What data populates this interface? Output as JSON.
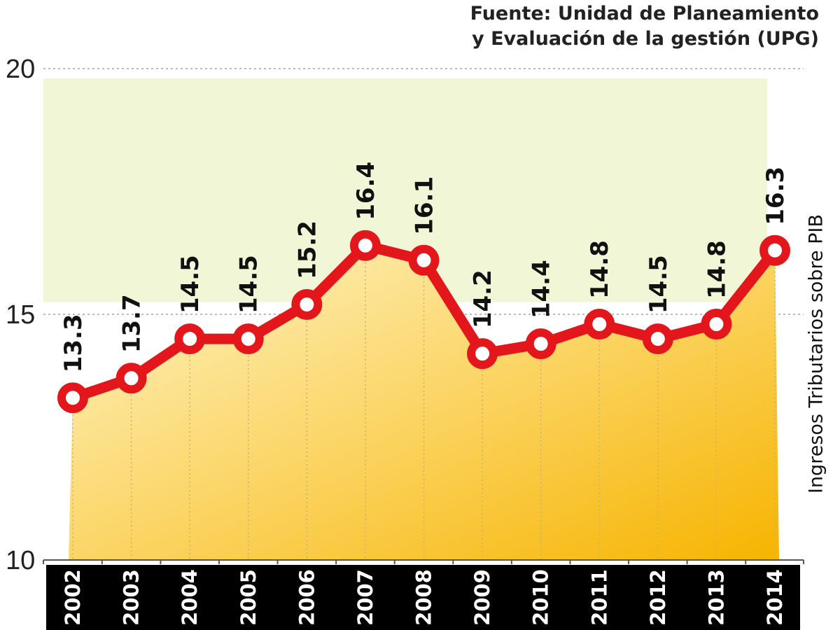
{
  "source": {
    "line1": "Fuente: Unidad de Planeamiento",
    "line2": "y Evaluación de la gestión (UPG)"
  },
  "colors": {
    "line": "#e3161b",
    "marker_fill": "#ffffff",
    "band_light": "#f1f7d6",
    "area_top": "#fff6cc",
    "area_bottom": "#f7b400",
    "xaxis_bar": "#000000",
    "xaxis_text": "#ffffff",
    "grid": "#bbbbbb"
  },
  "chart_data": {
    "type": "line",
    "x": [
      "2002",
      "2003",
      "2004",
      "2005",
      "2006",
      "2007",
      "2008",
      "2009",
      "2010",
      "2011",
      "2012",
      "2013",
      "2014"
    ],
    "series": [
      {
        "values": [
          13.3,
          13.7,
          14.5,
          14.5,
          15.2,
          16.4,
          16.1,
          14.2,
          14.4,
          14.8,
          14.5,
          14.8,
          16.3
        ]
      }
    ],
    "data_labels": [
      "13.3",
      "13.7",
      "14.5",
      "14.5",
      "15.2",
      "16.4",
      "16.1",
      "14.2",
      "14.4",
      "14.8",
      "14.5",
      "14.8",
      "16.3"
    ],
    "title": "",
    "xlabel": "",
    "ylabel": "Ingresos Tributarios sobre PIB",
    "ylim": [
      10,
      20
    ],
    "yticks": [
      10,
      15,
      20
    ],
    "ytick_labels": [
      "10",
      "15",
      "20"
    ],
    "grid": true,
    "legend": "none"
  }
}
